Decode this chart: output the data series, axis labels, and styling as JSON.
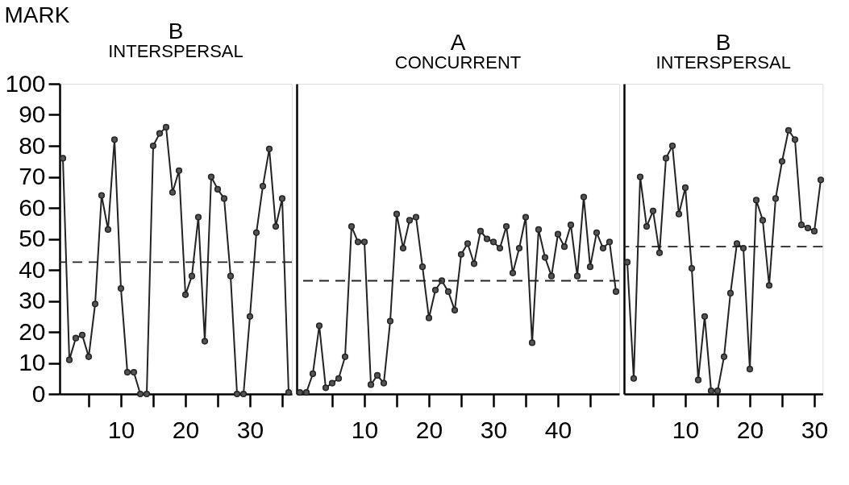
{
  "chart_data": [
    {
      "type": "line",
      "title": "B",
      "subtitle": "INTERSPERSAL",
      "ylabel": "MARK",
      "x": [
        1,
        2,
        3,
        4,
        5,
        6,
        7,
        8,
        9,
        10,
        11,
        12,
        13,
        14,
        15,
        16,
        17,
        18,
        19,
        20,
        21,
        22,
        23,
        24,
        25,
        26,
        27,
        28,
        29,
        30,
        31,
        32,
        33,
        34,
        35,
        36
      ],
      "series": [
        {
          "color": "#222222",
          "values": [
            76,
            11,
            18,
            19,
            12,
            29,
            64,
            53,
            82,
            34,
            7,
            7,
            0,
            0,
            80,
            84,
            86,
            65,
            72,
            32,
            38,
            57,
            17,
            70,
            66,
            63,
            38,
            0,
            0,
            25,
            52,
            67,
            79,
            54,
            63,
            0.5
          ]
        }
      ],
      "xlim": [
        0.5,
        36.5
      ],
      "xticks": [
        {
          "value": 5,
          "label": null
        },
        10,
        {
          "value": 15,
          "label": null
        },
        20,
        {
          "value": 25,
          "label": null
        },
        30,
        {
          "value": 35,
          "label": null
        }
      ],
      "ylim": [
        0,
        100
      ],
      "yticks": [
        0,
        10,
        20,
        30,
        40,
        50,
        60,
        70,
        80,
        90,
        100
      ],
      "ref_lines": [
        {
          "axis": "y",
          "value": 42.5,
          "line_style": "dashed"
        }
      ],
      "marker": "circle",
      "line_style": "solid",
      "grid": false
    },
    {
      "type": "line",
      "title": "A",
      "subtitle": "CONCURRENT",
      "x": [
        0,
        1,
        2,
        3,
        4,
        5,
        6,
        7,
        8,
        9,
        10,
        11,
        12,
        13,
        14,
        15,
        16,
        17,
        18,
        19,
        20,
        21,
        22,
        23,
        24,
        25,
        26,
        27,
        28,
        29,
        30,
        31,
        32,
        33,
        34,
        35,
        36,
        37,
        38,
        39,
        40,
        41,
        42,
        43,
        44,
        45,
        46,
        47,
        48,
        49
      ],
      "series": [
        {
          "color": "#222222",
          "values": [
            0.5,
            0.5,
            6.5,
            22,
            2,
            3.5,
            5,
            12,
            54,
            49,
            49,
            3,
            6,
            3.5,
            23.5,
            58,
            47,
            56,
            57,
            41,
            24.5,
            33.5,
            36.5,
            33,
            27,
            45,
            48.5,
            42,
            52.5,
            50,
            49,
            47,
            54,
            39,
            47,
            57,
            16.5,
            53,
            44,
            38,
            51.5,
            47.5,
            54.5,
            38,
            63.5,
            41,
            52,
            47,
            49,
            33
          ]
        }
      ],
      "xlim": [
        -0.5,
        49.5
      ],
      "xticks": [
        {
          "value": 5,
          "label": null
        },
        10,
        {
          "value": 15,
          "label": null
        },
        20,
        {
          "value": 25,
          "label": null
        },
        30,
        {
          "value": 35,
          "label": null
        },
        40,
        {
          "value": 45,
          "label": null
        }
      ],
      "ylim": [
        0,
        100
      ],
      "tick_labels": "x",
      "ref_lines": [
        {
          "axis": "y",
          "value": 36.5,
          "line_style": "dashed"
        }
      ],
      "marker": "circle",
      "line_style": "solid",
      "grid": false
    },
    {
      "type": "line",
      "title": "B",
      "subtitle": "INTERSPERSAL",
      "x": [
        1,
        2,
        3,
        4,
        5,
        6,
        7,
        8,
        9,
        10,
        11,
        12,
        13,
        14,
        15,
        16,
        17,
        18,
        19,
        20,
        21,
        22,
        23,
        24,
        25,
        26,
        27,
        28,
        29,
        30,
        31
      ],
      "series": [
        {
          "color": "#222222",
          "values": [
            42.5,
            5,
            70,
            54,
            59,
            45.5,
            76,
            80,
            58,
            66.5,
            40.5,
            4.5,
            25,
            1,
            1,
            12,
            32.5,
            48.5,
            47,
            8,
            62.5,
            56,
            35,
            63,
            75,
            85,
            82,
            54.5,
            53.5,
            52.5,
            69
          ]
        }
      ],
      "xlim": [
        0.5,
        31.3
      ],
      "xticks": [
        {
          "value": 5,
          "label": null
        },
        10,
        {
          "value": 15,
          "label": null
        },
        20,
        {
          "value": 25,
          "label": null
        },
        30
      ],
      "ylim": [
        0,
        100
      ],
      "tick_labels": "x",
      "ref_lines": [
        {
          "axis": "y",
          "value": 47.5,
          "line_style": "dashed"
        }
      ],
      "marker": "circle",
      "line_style": "solid",
      "grid": false
    }
  ]
}
